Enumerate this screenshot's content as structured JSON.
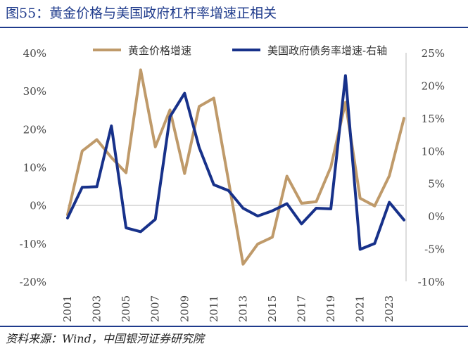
{
  "header": {
    "title": "图55：黄金价格与美国政府杠杆率增速正相关"
  },
  "footer": {
    "source": "资料来源：Wind，中国银河证券研究院"
  },
  "chart_data": {
    "type": "line",
    "title": "",
    "xlabel": "",
    "ylabel_left": "",
    "ylabel_right": "",
    "x": [
      2001,
      2002,
      2003,
      2004,
      2005,
      2006,
      2007,
      2008,
      2009,
      2010,
      2011,
      2012,
      2013,
      2014,
      2015,
      2016,
      2017,
      2018,
      2019,
      2020,
      2021,
      2022,
      2023,
      2024
    ],
    "x_tick_labels": [
      "2001",
      "2003",
      "2005",
      "2007",
      "2009",
      "2011",
      "2013",
      "2015",
      "2017",
      "2019",
      "2021",
      "2023"
    ],
    "ylim_left": [
      -20,
      40
    ],
    "ylim_right": [
      -10,
      25
    ],
    "y_left_ticks": [
      "40%",
      "30%",
      "20%",
      "10%",
      "0%",
      "-10%",
      "-20%"
    ],
    "y_right_ticks": [
      "25%",
      "20%",
      "15%",
      "10%",
      "5%",
      "0%",
      "-5%",
      "-10%"
    ],
    "legend_position": "top",
    "colors": {
      "gold": "#bf9a6a",
      "debt": "#17318a",
      "axis": "#bbbbbb"
    },
    "series": [
      {
        "name": "黄金价格增速",
        "axis": "left",
        "values": [
          -2.5,
          14.2,
          17.2,
          12.5,
          8.5,
          35.5,
          15.3,
          25.0,
          8.3,
          25.9,
          28.1,
          6.5,
          -15.5,
          -10.2,
          -8.4,
          7.6,
          0.5,
          0.9,
          10.0,
          27.0,
          1.8,
          -0.2,
          7.7,
          22.8
        ]
      },
      {
        "name": "美国政府债务率增速-右轴",
        "axis": "right",
        "values": [
          -0.3,
          4.4,
          4.5,
          13.8,
          -1.8,
          -2.4,
          -0.5,
          15.2,
          18.8,
          10.5,
          4.8,
          3.9,
          1.2,
          0.0,
          0.8,
          1.9,
          -1.2,
          1.2,
          1.1,
          21.5,
          -5.1,
          -4.2,
          2.1,
          -0.6
        ]
      }
    ]
  }
}
